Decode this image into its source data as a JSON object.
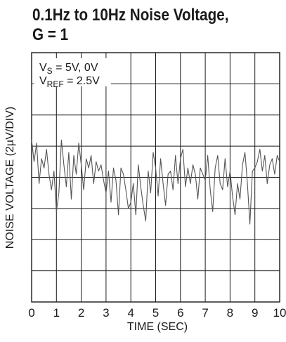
{
  "chart_data": {
    "type": "line",
    "title_line1": "0.1Hz to 10Hz Noise Voltage,",
    "title_line2": "G = 1",
    "xlabel": "TIME (SEC)",
    "ylabel": "NOISE VOLTAGE (2µV/DIV)",
    "xlim": [
      0,
      10
    ],
    "x_ticks": [
      "0",
      "1",
      "2",
      "3",
      "4",
      "5",
      "6",
      "7",
      "8",
      "9",
      "10"
    ],
    "y_divisions": 8,
    "y_unit_per_div_uV": 2,
    "ylim_uV": [
      -8,
      8
    ],
    "grid": true,
    "annotations": {
      "vs_main": "V",
      "vs_sub": "S",
      "vs_rest": " = 5V, 0V",
      "vref_main": "V",
      "vref_sub": "REF",
      "vref_rest": " = 2.5V"
    },
    "series": [
      {
        "color": "#555555",
        "x": [
          0.0,
          0.1,
          0.2,
          0.3,
          0.4,
          0.5,
          0.6,
          0.7,
          0.8,
          0.9,
          1.0,
          1.1,
          1.2,
          1.3,
          1.4,
          1.5,
          1.6,
          1.7,
          1.8,
          1.9,
          2.0,
          2.1,
          2.2,
          2.3,
          2.4,
          2.5,
          2.6,
          2.7,
          2.8,
          2.9,
          3.0,
          3.1,
          3.2,
          3.3,
          3.4,
          3.5,
          3.6,
          3.7,
          3.8,
          3.9,
          4.0,
          4.1,
          4.2,
          4.3,
          4.4,
          4.5,
          4.6,
          4.7,
          4.8,
          4.9,
          5.0,
          5.1,
          5.2,
          5.3,
          5.4,
          5.5,
          5.6,
          5.7,
          5.8,
          5.9,
          6.0,
          6.1,
          6.2,
          6.3,
          6.4,
          6.5,
          6.6,
          6.7,
          6.8,
          6.9,
          7.0,
          7.1,
          7.2,
          7.3,
          7.4,
          7.5,
          7.6,
          7.7,
          7.8,
          7.9,
          8.0,
          8.1,
          8.2,
          8.3,
          8.4,
          8.5,
          8.6,
          8.7,
          8.8,
          8.9,
          9.0,
          9.1,
          9.2,
          9.3,
          9.4,
          9.5,
          9.6,
          9.7,
          9.8,
          9.9,
          10.0
        ],
        "values": [
          2.4,
          1.0,
          2.2,
          -0.4,
          1.2,
          0.6,
          1.8,
          0.2,
          -0.8,
          0.4,
          -2.2,
          -1.0,
          2.4,
          0.8,
          -0.6,
          1.6,
          -1.4,
          1.4,
          0.2,
          2.2,
          0.8,
          -0.8,
          1.2,
          0.6,
          1.4,
          -0.4,
          1.0,
          0.4,
          0.8,
          -0.2,
          -1.0,
          0.4,
          -1.6,
          0.6,
          -0.2,
          -2.4,
          0.6,
          0.2,
          -0.8,
          -2.0,
          -1.6,
          -0.4,
          -2.4,
          0.8,
          -0.6,
          -1.8,
          -2.8,
          0.4,
          -1.0,
          1.6,
          0.6,
          -1.2,
          1.2,
          -0.4,
          -1.8,
          0.2,
          0.4,
          -0.8,
          1.4,
          -0.4,
          1.2,
          1.8,
          -0.6,
          0.6,
          -0.4,
          0.8,
          0.2,
          -1.4,
          0.6,
          0.2,
          -0.2,
          1.4,
          -0.8,
          -2.2,
          0.6,
          1.4,
          -0.4,
          -0.8,
          1.2,
          -0.6,
          0.4,
          -1.2,
          -2.4,
          -0.4,
          -1.4,
          0.8,
          1.6,
          -0.4,
          -3.0,
          0.4,
          0.6,
          1.0,
          1.8,
          0.4,
          1.4,
          -0.4,
          0.8,
          1.2,
          0.2,
          1.4,
          1.0
        ]
      }
    ]
  }
}
